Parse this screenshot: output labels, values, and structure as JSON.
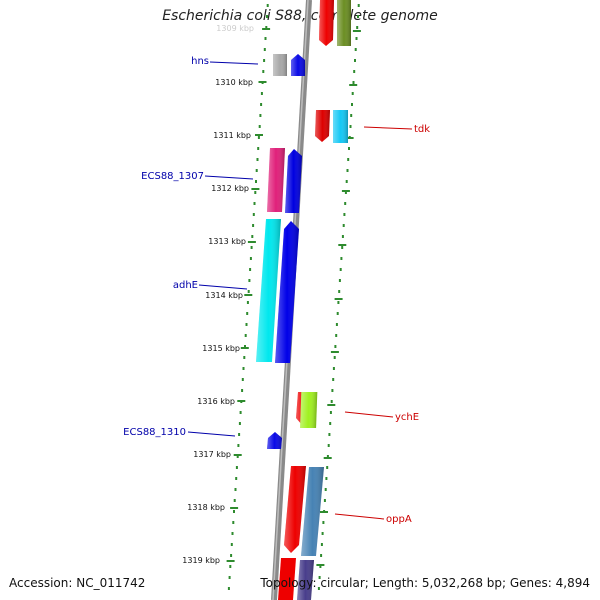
{
  "title": "Escherichia coli S88, complete genome",
  "footer": {
    "accession": "Accession: NC_011742",
    "topology": "Topology: circular; Length: 5,032,268 bp; Genes: 4,894"
  },
  "ruler_ticks": [
    "1309 kbp",
    "1310 kbp",
    "1311 kbp",
    "1312 kbp",
    "1313 kbp",
    "1314 kbp",
    "1315 kbp",
    "1316 kbp",
    "1317 kbp",
    "1318 kbp",
    "1319 kbp"
  ],
  "gene_labels": {
    "left": [
      "hns",
      "ECS88_1307",
      "adhE",
      "ECS88_1310"
    ],
    "right": [
      "tdk",
      "ychE",
      "oppA"
    ]
  },
  "colors": {
    "left_label": "#0000aa",
    "right_label": "#cc0000",
    "ruler_left": "#2e8b2e",
    "ruler_right": "#2e8b2e",
    "backbone": "#888888"
  }
}
